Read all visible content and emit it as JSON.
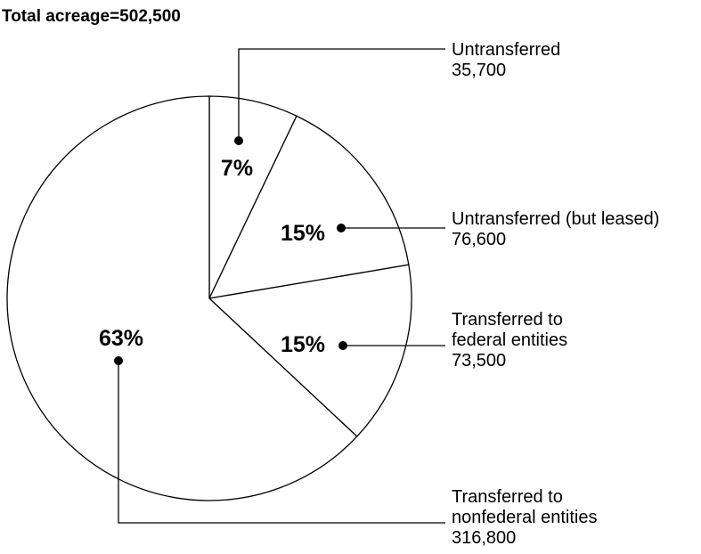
{
  "chart_data": {
    "type": "pie",
    "title": "Total acreage=502,500",
    "slices": [
      {
        "label_lines": [
          "Untransferred"
        ],
        "value": 35700,
        "value_text": "35,700",
        "percent_text": "7%"
      },
      {
        "label_lines": [
          "Untransferred (but leased)"
        ],
        "value": 76600,
        "value_text": "76,600",
        "percent_text": "15%"
      },
      {
        "label_lines": [
          "Transferred to",
          "federal entities"
        ],
        "value": 73500,
        "value_text": "73,500",
        "percent_text": "15%"
      },
      {
        "label_lines": [
          "Transferred to",
          "nonfederal entities"
        ],
        "value": 316800,
        "value_text": "316,800",
        "percent_text": "63%"
      }
    ],
    "colors": {
      "fill": "#ffffff",
      "stroke": "#000000"
    }
  }
}
